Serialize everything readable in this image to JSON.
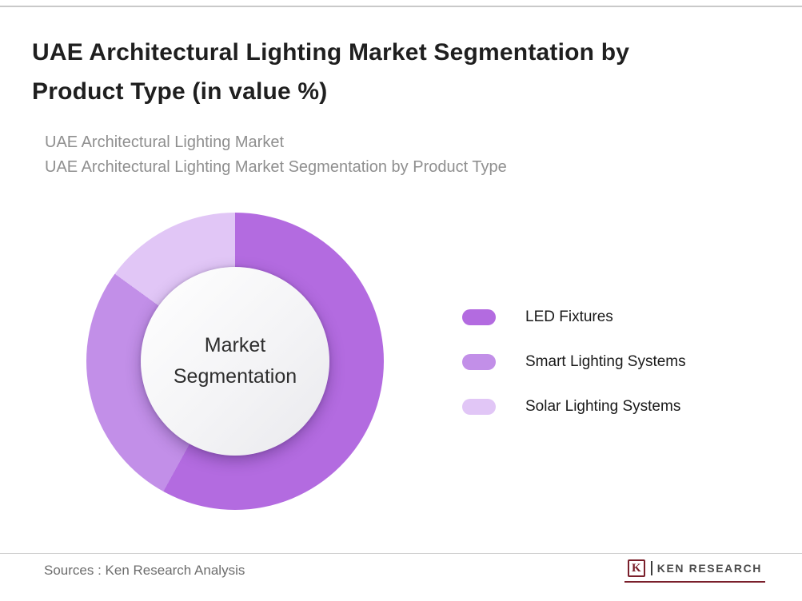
{
  "page": {
    "title": "UAE Architectural Lighting Market Segmentation by Product Type (in value %)",
    "subtitle_line1": "UAE Architectural Lighting Market",
    "subtitle_line2": "UAE Architectural Lighting Market Segmentation by Product Type",
    "footer_source": "Sources : Ken Research Analysis",
    "brand": {
      "icon": "K",
      "name": "KEN RESEARCH",
      "accent_color": "#7a1f2b"
    }
  },
  "chart_data": {
    "type": "pie",
    "variant": "donut",
    "title": "UAE Architectural Lighting Market Segmentation by Product Type (in value %)",
    "center_label": "Market Segmentation",
    "values_shown_on_chart": false,
    "start_angle_deg": 0,
    "legend_position": "right",
    "segments": [
      {
        "label": "LED Fixtures",
        "value": 58,
        "color": "#b36be0"
      },
      {
        "label": "Smart Lighting Systems",
        "value": 27,
        "color": "#c28fe8"
      },
      {
        "label": "Solar Lighting Systems",
        "value": 15,
        "color": "#e1c6f6"
      }
    ]
  }
}
